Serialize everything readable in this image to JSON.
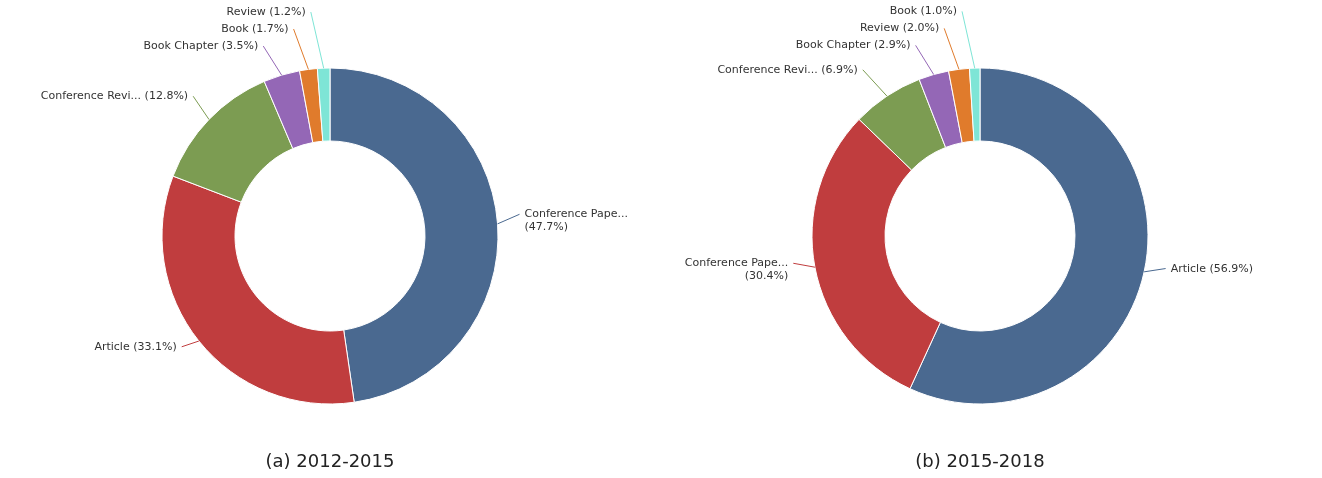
{
  "chart_data": [
    {
      "type": "donut",
      "title": "(a) 2012-2015",
      "value_labels": [
        "(47.7%)",
        "(33.1%)",
        "(12.8%)",
        "(3.5%)",
        "(1.7%)",
        "(1.2%)"
      ],
      "categories": [
        "Conference Pape...",
        "Article",
        "Conference Revi...",
        "Book Chapter",
        "Book",
        "Review"
      ],
      "values": [
        47.7,
        33.1,
        12.8,
        3.5,
        1.7,
        1.2
      ],
      "colors": [
        "#4a6990",
        "#c03d3e",
        "#7c9c52",
        "#9467b6",
        "#e07b2c",
        "#7ee5d6"
      ]
    },
    {
      "type": "donut",
      "title": "(b) 2015-2018",
      "value_labels": [
        "(56.9%)",
        "(30.4%)",
        "(6.9%)",
        "(2.9%)",
        "(2.0%)",
        "(1.0%)"
      ],
      "categories": [
        "Article",
        "Conference Pape...",
        "Conference Revi...",
        "Book Chapter",
        "Review",
        "Book"
      ],
      "values": [
        56.9,
        30.4,
        6.9,
        2.9,
        2.0,
        1.0
      ],
      "colors": [
        "#4a6990",
        "#c03d3e",
        "#7c9c52",
        "#9467b6",
        "#e07b2c",
        "#7ee5d6"
      ]
    }
  ]
}
